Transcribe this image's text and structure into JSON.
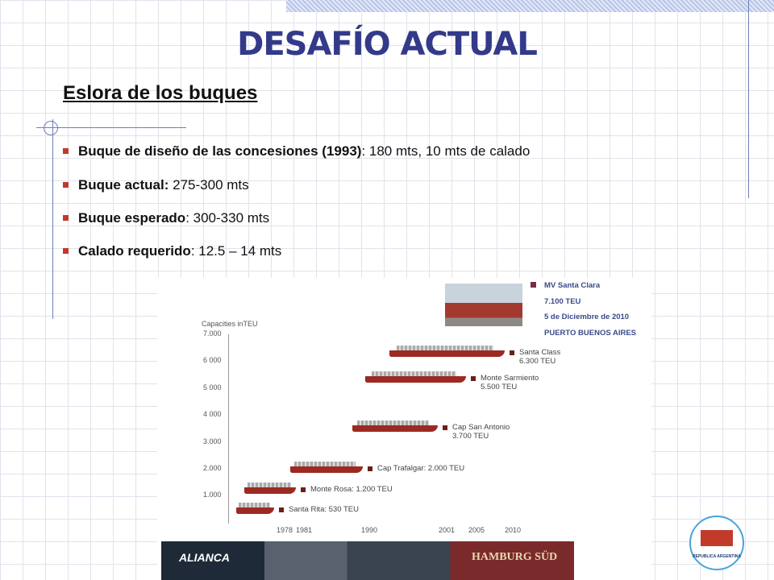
{
  "header": {
    "title": "DESAFÍO ACTUAL",
    "subtitle": "Eslora de los buques"
  },
  "bullets": [
    {
      "bold": "Buque de diseño de las concesiones (1993)",
      "rest": ": 180 mts, 10 mts de calado"
    },
    {
      "bold": "Buque actual:",
      "rest": " 275-300 mts"
    },
    {
      "bold": "Buque esperado",
      "rest": ": 300-330 mts"
    },
    {
      "bold": "Calado requerido",
      "rest": ": 12.5 – 14 mts"
    }
  ],
  "photo_caption": [
    "MV Santa Clara",
    "7.100 TEU",
    "5 de Diciembre de 2010",
    "PUERTO BUENOS AIRES"
  ],
  "figure": {
    "axis_title": "Capacities inTEU",
    "y_labels": [
      "7.000",
      "6 000",
      "5 000",
      "4 000",
      "3.000",
      "2.000",
      "1.000"
    ],
    "x_labels": [
      "1978",
      "1981",
      "1990",
      "2001",
      "2005",
      "2010"
    ],
    "ships": [
      {
        "name": "Santa Class",
        "capacity": "6.300 TEU"
      },
      {
        "name": "Monte Sarmiento",
        "capacity": "5.500 TEU"
      },
      {
        "name": "Cap San Antonio",
        "capacity": "3.700 TEU"
      },
      {
        "name": "Cap Trafalgar: 2.000 TEU"
      },
      {
        "name": "Monte Rosa: 1.200 TEU"
      },
      {
        "name": "Santa Rita: 530 TEU"
      }
    ]
  },
  "banner": {
    "left": "ALIANCA",
    "right": "HAMBURG SÜD"
  },
  "logo": "REPUBLICA ARGENTINA"
}
